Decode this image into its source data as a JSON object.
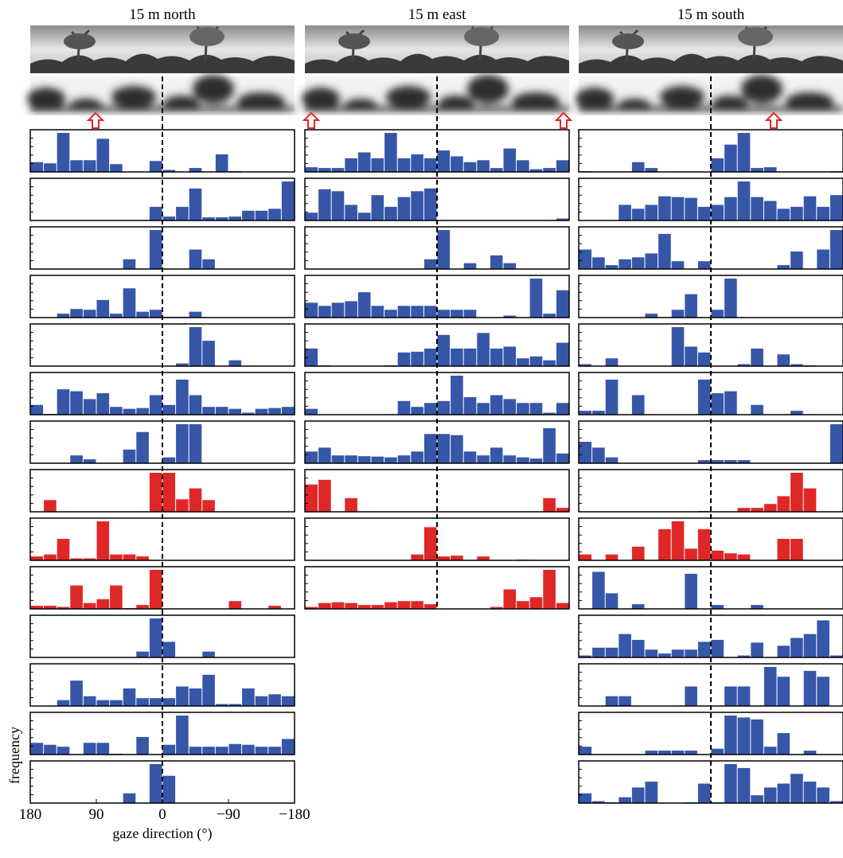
{
  "chart_data": [
    {
      "type": "histogram",
      "title": "15 m north",
      "xlabel": "gaze direction (°)",
      "ylabel": "frequency",
      "bins": [
        180,
        162,
        144,
        126,
        108,
        90,
        72,
        54,
        36,
        18,
        0,
        -18,
        -36,
        -54,
        -72,
        -90,
        -108,
        -126,
        -144,
        -162,
        -180
      ],
      "xlim": [
        180,
        -180
      ],
      "ylim": [
        0,
        1
      ],
      "reference_x": 0,
      "xticks": [
        180,
        90,
        0,
        {
          "value": -90,
          "label": "−90"
        },
        {
          "value": -180,
          "label": "−180"
        }
      ],
      "panels": [
        {
          "color": "#3656a8",
          "values": [
            0.25,
            0.22,
            1.0,
            0.3,
            0.3,
            0.85,
            0.2,
            0,
            0,
            0.28,
            0.05,
            0,
            0.1,
            0,
            0.45,
            0.02,
            0,
            0,
            0,
            0
          ]
        },
        {
          "color": "#3656a8",
          "values": [
            0,
            0,
            0,
            0,
            0,
            0,
            0,
            0,
            0,
            0.35,
            0.1,
            0.35,
            0.82,
            0.08,
            0.08,
            0.1,
            0.25,
            0.25,
            0.3,
            1.0
          ]
        },
        {
          "color": "#3656a8",
          "values": [
            0,
            0,
            0,
            0,
            0,
            0,
            0,
            0.25,
            0,
            1.0,
            0,
            0,
            0.5,
            0.25,
            0,
            0,
            0,
            0,
            0,
            0
          ]
        },
        {
          "color": "#3656a8",
          "values": [
            0,
            0,
            0.1,
            0.22,
            0.2,
            0.45,
            0.1,
            0.75,
            0.15,
            0.2,
            0.02,
            0.02,
            0.15,
            0,
            0,
            0,
            0,
            0,
            0,
            0
          ]
        },
        {
          "color": "#3656a8",
          "values": [
            0,
            0,
            0,
            0,
            0,
            0,
            0,
            0,
            0,
            0,
            0,
            0.07,
            1.0,
            0.65,
            0,
            0.15,
            0,
            0,
            0,
            0
          ]
        },
        {
          "color": "#3656a8",
          "values": [
            0.25,
            0.02,
            0.65,
            0.6,
            0.4,
            0.55,
            0.2,
            0.15,
            0.17,
            0.5,
            0.25,
            0.9,
            0.5,
            0.2,
            0.2,
            0.15,
            0.05,
            0.15,
            0.17,
            0.2
          ]
        },
        {
          "color": "#3656a8",
          "values": [
            0,
            0,
            0,
            0.2,
            0.1,
            0,
            0,
            0.35,
            0.8,
            0,
            0.15,
            1.0,
            1.0,
            0,
            0,
            0,
            0,
            0,
            0,
            0
          ]
        },
        {
          "color": "#e02727",
          "values": [
            0,
            0.3,
            0,
            0,
            0,
            0,
            0,
            0,
            0,
            1.0,
            1.0,
            0.32,
            0.6,
            0.3,
            0,
            0,
            0,
            0,
            0,
            0
          ]
        },
        {
          "color": "#e02727",
          "values": [
            0.1,
            0.15,
            0.55,
            0.05,
            0.05,
            1.0,
            0.15,
            0.15,
            0.1,
            0,
            0,
            0,
            0,
            0,
            0,
            0,
            0,
            0,
            0,
            0
          ]
        },
        {
          "color": "#e02727",
          "values": [
            0.08,
            0.08,
            0.05,
            0.6,
            0.15,
            0.25,
            0.6,
            0.02,
            0.1,
            1.0,
            0,
            0,
            0,
            0,
            0,
            0.2,
            0,
            0,
            0.08,
            0
          ]
        },
        {
          "color": "#3656a8",
          "values": [
            0,
            0,
            0,
            0,
            0,
            0,
            0,
            0,
            0.15,
            1.0,
            0.4,
            0,
            0,
            0.15,
            0,
            0,
            0,
            0,
            0,
            0
          ]
        },
        {
          "color": "#3656a8",
          "values": [
            0,
            0,
            0.15,
            0.65,
            0.25,
            0.15,
            0.15,
            0.45,
            0.2,
            0.2,
            0.2,
            0.5,
            0.45,
            0.8,
            0.05,
            0.05,
            0.45,
            0.25,
            0.3,
            0.25
          ]
        },
        {
          "color": "#3656a8",
          "values": [
            0.3,
            0.25,
            0.2,
            0,
            0.3,
            0.3,
            0.02,
            0,
            0.45,
            0,
            0.25,
            1.0,
            0.2,
            0.2,
            0.2,
            0.27,
            0.25,
            0.2,
            0.2,
            0.4
          ]
        },
        {
          "color": "#3656a8",
          "values": [
            0,
            0,
            0,
            0,
            0,
            0,
            0,
            0.25,
            0,
            1.0,
            0.7,
            0,
            0,
            0,
            0,
            0,
            0,
            0,
            0,
            0
          ]
        }
      ]
    },
    {
      "type": "histogram",
      "title": "15 m east",
      "bins": [
        180,
        162,
        144,
        126,
        108,
        90,
        72,
        54,
        36,
        18,
        0,
        -18,
        -36,
        -54,
        -72,
        -90,
        -108,
        -126,
        -144,
        -162,
        -180
      ],
      "xlim": [
        180,
        -180
      ],
      "ylim": [
        0,
        1
      ],
      "reference_x": 0,
      "panels": [
        {
          "color": "#3656a8",
          "values": [
            0.12,
            0.1,
            0.1,
            0.35,
            0.5,
            0.35,
            1.0,
            0.35,
            0.45,
            0.35,
            0.55,
            0.4,
            0.25,
            0.3,
            0.1,
            0.6,
            0.3,
            0.07,
            0.1,
            0.3
          ]
        },
        {
          "color": "#3656a8",
          "values": [
            0.2,
            0.8,
            0.75,
            0.4,
            0.2,
            0.65,
            0.35,
            0.6,
            0.75,
            0.82,
            0,
            0,
            0,
            0,
            0,
            0,
            0,
            0,
            0,
            0.05
          ]
        },
        {
          "color": "#3656a8",
          "values": [
            0,
            0,
            0,
            0,
            0,
            0,
            0,
            0,
            0,
            0.25,
            1.0,
            0,
            0.15,
            0,
            0.35,
            0.15,
            0,
            0,
            0,
            0
          ]
        },
        {
          "color": "#3656a8",
          "values": [
            0.38,
            0.3,
            0.38,
            0.42,
            0.65,
            0.3,
            0.2,
            0.3,
            0.3,
            0.3,
            0.2,
            0.2,
            0.2,
            0,
            0,
            0.05,
            0,
            1.0,
            0.1,
            0.7
          ]
        },
        {
          "color": "#3656a8",
          "values": [
            0.45,
            0.02,
            0,
            0,
            0,
            0,
            0.02,
            0.35,
            0.37,
            0.45,
            0.8,
            0.45,
            0.45,
            0.85,
            0.45,
            0.5,
            0.2,
            0.25,
            0.15,
            0.6
          ]
        },
        {
          "color": "#3656a8",
          "values": [
            0.15,
            0,
            0,
            0,
            0,
            0,
            0,
            0.35,
            0.2,
            0.3,
            0.35,
            1.0,
            0.45,
            0.3,
            0.5,
            0.4,
            0.3,
            0.3,
            0.05,
            0.3
          ]
        },
        {
          "color": "#3656a8",
          "values": [
            0.3,
            0.4,
            0.2,
            0.2,
            0.18,
            0.17,
            0.15,
            0.2,
            0.3,
            0.75,
            0.75,
            0.72,
            0.3,
            0.2,
            0.4,
            0.2,
            0.15,
            0.12,
            0.9,
            0.25
          ]
        },
        {
          "color": "#e02727",
          "values": [
            0.7,
            0.82,
            0,
            0.35,
            0,
            0,
            0,
            0,
            0,
            0,
            0,
            0,
            0,
            0,
            0,
            0,
            0,
            0,
            0.35,
            0.1
          ]
        },
        {
          "color": "#e02727",
          "values": [
            0,
            0,
            0,
            0,
            0,
            0,
            0,
            0,
            0.15,
            0.85,
            0.1,
            0.12,
            0,
            0.1,
            0,
            0,
            0.02,
            0,
            0,
            0
          ]
        },
        {
          "color": "#e02727",
          "values": [
            0.05,
            0.15,
            0.17,
            0.15,
            0.1,
            0.1,
            0.17,
            0.2,
            0.2,
            0.12,
            0,
            0,
            0,
            0,
            0.05,
            0.5,
            0.2,
            0.3,
            1.0,
            0.15
          ]
        }
      ]
    },
    {
      "type": "histogram",
      "title": "15 m south",
      "bins": [
        180,
        162,
        144,
        126,
        108,
        90,
        72,
        54,
        36,
        18,
        0,
        -18,
        -36,
        -54,
        -72,
        -90,
        -108,
        -126,
        -144,
        -162,
        -180
      ],
      "xlim": [
        180,
        -180
      ],
      "ylim": [
        0,
        1
      ],
      "reference_x": 0,
      "panels": [
        {
          "color": "#3656a8",
          "values": [
            0.02,
            0,
            0,
            0,
            0.25,
            0.1,
            0,
            0,
            0,
            0,
            0.35,
            0.7,
            1.0,
            0.1,
            0.12,
            0,
            0,
            0,
            0,
            0.02
          ]
        },
        {
          "color": "#3656a8",
          "values": [
            0,
            0,
            0,
            0.4,
            0.3,
            0.4,
            0.62,
            0.6,
            0.58,
            0.35,
            0.4,
            0.6,
            1.0,
            0.6,
            0.5,
            0.3,
            0.35,
            0.62,
            0.35,
            0.65
          ]
        },
        {
          "color": "#3656a8",
          "values": [
            0.5,
            0.3,
            0.1,
            0.25,
            0.3,
            0.4,
            0.9,
            0.2,
            0,
            0.2,
            0,
            0,
            0,
            0,
            0,
            0.1,
            0.45,
            0,
            0.5,
            1.0
          ]
        },
        {
          "color": "#3656a8",
          "values": [
            0,
            0,
            0,
            0,
            0,
            0.1,
            0,
            0.2,
            0.6,
            0,
            0.2,
            1.0,
            0,
            0,
            0,
            0,
            0,
            0,
            0,
            0
          ]
        },
        {
          "color": "#3656a8",
          "values": [
            0.05,
            0,
            0.2,
            0,
            0,
            0,
            0,
            1.0,
            0.5,
            0.35,
            0,
            0,
            0.05,
            0.45,
            0,
            0.3,
            0.05,
            0.02,
            0,
            0
          ]
        },
        {
          "color": "#3656a8",
          "values": [
            0.1,
            0.1,
            0.9,
            0,
            0.5,
            0,
            0,
            0,
            0,
            0.9,
            0.55,
            0.6,
            0,
            0.25,
            0,
            0,
            0.1,
            0,
            0,
            0
          ]
        },
        {
          "color": "#3656a8",
          "values": [
            0.55,
            0.4,
            0.15,
            0,
            0,
            0,
            0,
            0,
            0,
            0.08,
            0.08,
            0.08,
            0.08,
            0,
            0,
            0,
            0,
            0,
            0,
            1.0
          ]
        },
        {
          "color": "#e02727",
          "values": [
            0,
            0,
            0,
            0,
            0,
            0,
            0,
            0,
            0,
            0.02,
            0,
            0,
            0.1,
            0.1,
            0.2,
            0.4,
            1.0,
            0.6,
            0,
            0
          ]
        },
        {
          "color": "#e02727",
          "values": [
            0.15,
            0,
            0.15,
            0,
            0.35,
            0,
            0.8,
            1.0,
            0.3,
            0.8,
            0.25,
            0.18,
            0.15,
            0,
            0,
            0.55,
            0.55,
            0,
            0,
            0
          ]
        },
        {
          "color": "#3656a8",
          "values": [
            0,
            0.95,
            0.4,
            0,
            0.12,
            0,
            0,
            0,
            0.9,
            0,
            0.1,
            0,
            0,
            0.1,
            0,
            0,
            0,
            0,
            0,
            0
          ]
        },
        {
          "color": "#3656a8",
          "values": [
            0.05,
            0.25,
            0.25,
            0.6,
            0.45,
            0.2,
            0.1,
            0.2,
            0.2,
            0.4,
            0.45,
            0,
            0.05,
            0.38,
            0,
            0.3,
            0.5,
            0.6,
            0.95,
            0.05
          ]
        },
        {
          "color": "#3656a8",
          "values": [
            0,
            0,
            0.25,
            0.25,
            0,
            0,
            0,
            0,
            0.5,
            0,
            0,
            0.5,
            0.5,
            0,
            1.0,
            0.75,
            0,
            0.9,
            0.75,
            0
          ]
        },
        {
          "color": "#3656a8",
          "values": [
            0.2,
            0,
            0,
            0,
            0,
            0.1,
            0.1,
            0.1,
            0.1,
            0,
            0.15,
            1.0,
            0.95,
            0.9,
            0.2,
            0.55,
            0,
            0.1,
            0,
            0
          ]
        },
        {
          "color": "#3656a8",
          "values": [
            0.25,
            0.05,
            0.02,
            0.15,
            0.4,
            0.55,
            0,
            0,
            0.02,
            0.5,
            0.02,
            1.0,
            0.9,
            0.2,
            0.4,
            0.5,
            0.75,
            0.55,
            0.4,
            0.05
          ]
        }
      ]
    }
  ]
}
